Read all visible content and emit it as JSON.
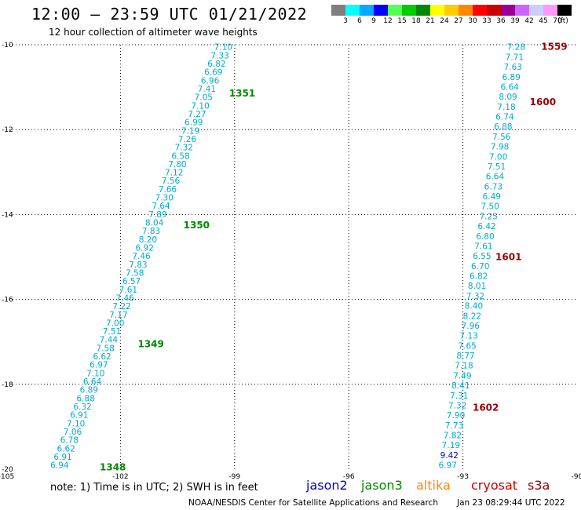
{
  "header": {
    "title": "12:00 – 23:59 UTC 01/21/2022",
    "subtitle": "12 hour collection of altimeter wave heights"
  },
  "color_scale": {
    "unit": "(ft)",
    "bins": [
      {
        "color": "#7f7f7f",
        "label": "3"
      },
      {
        "color": "#00ffff",
        "label": "6"
      },
      {
        "color": "#00aaff",
        "label": "9"
      },
      {
        "color": "#0000ff",
        "label": "12"
      },
      {
        "color": "#55ff55",
        "label": "15"
      },
      {
        "color": "#00cc00",
        "label": "18"
      },
      {
        "color": "#008800",
        "label": "21"
      },
      {
        "color": "#ffff00",
        "label": "24"
      },
      {
        "color": "#ffcc00",
        "label": "27"
      },
      {
        "color": "#ff8800",
        "label": "30"
      },
      {
        "color": "#ff0000",
        "label": "33"
      },
      {
        "color": "#cc0000",
        "label": "36"
      },
      {
        "color": "#990099",
        "label": "39"
      },
      {
        "color": "#cc66ff",
        "label": "42"
      },
      {
        "color": "#ccccff",
        "label": "45"
      },
      {
        "color": "#ff99ff",
        "label": "70"
      },
      {
        "color": "#000000",
        "label": ""
      }
    ]
  },
  "footer": {
    "note": "note: 1) Time is in UTC; 2) SWH is in feet",
    "satellites": [
      {
        "name": "jason2",
        "color": "#0000cc"
      },
      {
        "name": "jason3",
        "color": "#008800"
      },
      {
        "name": "altika",
        "color": "#ff8800"
      },
      {
        "name": "cryosat",
        "color": "#cc0000"
      },
      {
        "name": "s3a",
        "color": "#990000"
      }
    ],
    "credit": "NOAA/NESDIS Center for Satellite Applications and Research",
    "timestamp": "Jan 23 08:29:44 UTC 2022"
  },
  "chart_data": {
    "type": "scatter",
    "xlim": [
      -105,
      -90
    ],
    "ylim": [
      -20,
      -10
    ],
    "x_ticks": [
      "-105",
      "-102",
      "-99",
      "-96",
      "-93",
      "-90"
    ],
    "y_ticks": [
      "-10",
      "-12",
      "-14",
      "-16",
      "-18",
      "-20"
    ],
    "grid": true,
    "series": [
      {
        "name": "jason3",
        "color": "#00aacc",
        "label_color": "#008800",
        "start": [
          -99.3,
          -10.05
        ],
        "end": [
          -103.6,
          -19.9
        ],
        "values": [
          "7.10",
          "7.33",
          "6.82",
          "6.69",
          "6.96",
          "7.41",
          "7.05",
          "7.10",
          "7.27",
          "6.99",
          "7.19",
          "7.26",
          "7.32",
          "6.58",
          "7.80",
          "7.12",
          "7.56",
          "7.66",
          "7.30",
          "7.64",
          "7.89",
          "8.04",
          "7.83",
          "8.20",
          "6.92",
          "7.46",
          "7.83",
          "7.58",
          "6.57",
          "7.61",
          "7.46",
          "7.22",
          "7.17",
          "7.00",
          "7.51",
          "7.44",
          "7.58",
          "6.62",
          "6.97",
          "7.10",
          "6.64",
          "6.89",
          "6.88",
          "6.32",
          "6.91",
          "7.10",
          "7.06",
          "6.78",
          "6.62",
          "6.91",
          "6.94"
        ],
        "pass_labels": [
          {
            "text": "1351",
            "x": -98.8,
            "y": -11.15
          },
          {
            "text": "1350",
            "x": -100.0,
            "y": -14.25
          },
          {
            "text": "1349",
            "x": -101.2,
            "y": -17.05
          },
          {
            "text": "1348",
            "x": -102.2,
            "y": -19.95
          }
        ]
      },
      {
        "name": "s3a",
        "color": "#00aacc",
        "label_color": "#990000",
        "start": [
          -91.6,
          -10.05
        ],
        "end": [
          -93.4,
          -19.9
        ],
        "values": [
          "7.28",
          "7.71",
          "7.63",
          "6.89",
          "6.64",
          "8.09",
          "7.18",
          "6.74",
          "6.88",
          "7.56",
          "7.98",
          "7.00",
          "7.51",
          "6.64",
          "6.73",
          "6.49",
          "7.50",
          "7.25",
          "6.42",
          "6.80",
          "7.61",
          "6.55",
          "6.70",
          "6.82",
          "8.01",
          "7.32",
          "8.40",
          "8.22",
          "7.96",
          "7.13",
          "7.65",
          "8.77",
          "7.18",
          "7.49",
          "8.41",
          "7.31",
          "7.32",
          "7.90",
          "7.73",
          "7.82",
          "7.19",
          "9.42",
          "6.97"
        ],
        "highlight": {
          "9.42": "#0000cc"
        },
        "pass_labels": [
          {
            "text": "1559",
            "x": -90.6,
            "y": -10.05
          },
          {
            "text": "1600",
            "x": -90.9,
            "y": -11.35
          },
          {
            "text": "1601",
            "x": -91.8,
            "y": -15.0
          },
          {
            "text": "1602",
            "x": -92.4,
            "y": -18.55
          }
        ]
      }
    ]
  }
}
